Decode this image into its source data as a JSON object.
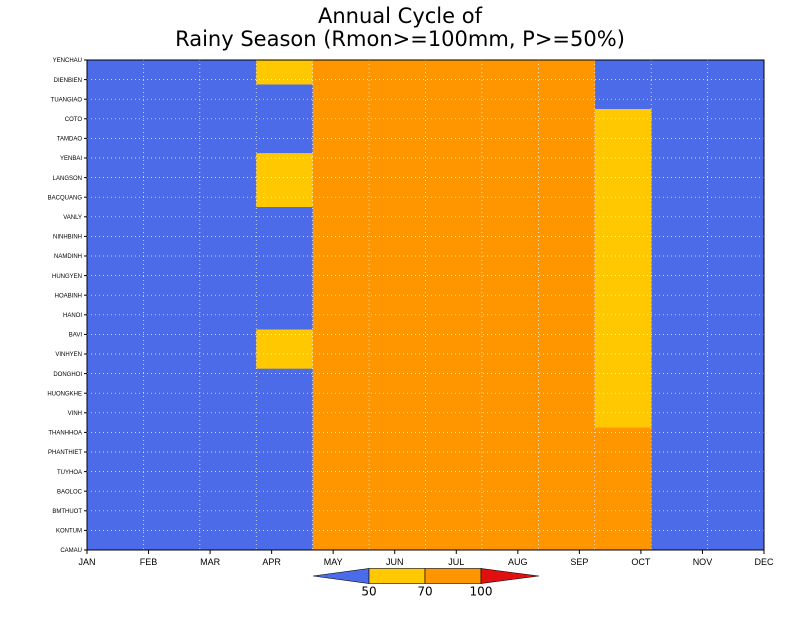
{
  "chart_data": {
    "type": "heatmap",
    "title": "Annual Cycle of",
    "subtitle": "Rainy Season (Rmon>=100mm, P>=50%)",
    "x_labels": [
      "JAN",
      "FEB",
      "MAR",
      "APR",
      "MAY",
      "JUN",
      "JUL",
      "AUG",
      "SEP",
      "OCT",
      "NOV",
      "DEC"
    ],
    "station_labels": [
      "YENCHAU",
      "DIENBIEN",
      "TUANGIAO",
      "COTO",
      "TAMDAO",
      "YENBAI",
      "LANGSON",
      "BACQUANG",
      "VANLY",
      "NINHBINH",
      "NAMDINH",
      "HUNGYEN",
      "HOABINH",
      "HANOI",
      "BAVI",
      "VINHYEN",
      "DONGHOI",
      "HUONGKHE",
      "VINH",
      "THANHHOA",
      "PHANTHIET",
      "TUYHOA",
      "BAOLOC",
      "BMTHUOT",
      "KONTUM",
      "CAMAU"
    ],
    "legend": {
      "bins": [
        "<50",
        "50-70",
        "70-100",
        ">100"
      ],
      "colors": [
        "#4b6be8",
        "#ffc800",
        "#ff9600",
        "#e01010"
      ],
      "tick_labels": [
        "50",
        "70",
        "100"
      ]
    },
    "grid": true,
    "row_count": 100,
    "encoding": "per month: [start_row, end_row, level] spans; level 0=<50 (blue), 1=50-70 (yellow), 2=70-100 (orange); rows not covered are 0",
    "months": [
      [
        [
          0,
          100,
          0
        ]
      ],
      [
        [
          0,
          100,
          0
        ]
      ],
      [
        [
          0,
          100,
          0
        ]
      ],
      [
        [
          0,
          5,
          1
        ],
        [
          5,
          19,
          0
        ],
        [
          19,
          30,
          1
        ],
        [
          30,
          55,
          0
        ],
        [
          55,
          63,
          1
        ],
        [
          63,
          100,
          0
        ]
      ],
      [
        [
          0,
          100,
          2
        ]
      ],
      [
        [
          0,
          100,
          2
        ]
      ],
      [
        [
          0,
          100,
          2
        ]
      ],
      [
        [
          0,
          100,
          2
        ]
      ],
      [
        [
          0,
          100,
          2
        ]
      ],
      [
        [
          0,
          10,
          0
        ],
        [
          10,
          35,
          1
        ],
        [
          35,
          75,
          1
        ],
        [
          75,
          100,
          2
        ]
      ],
      [
        [
          0,
          100,
          0
        ]
      ],
      [
        [
          0,
          100,
          0
        ]
      ]
    ]
  }
}
